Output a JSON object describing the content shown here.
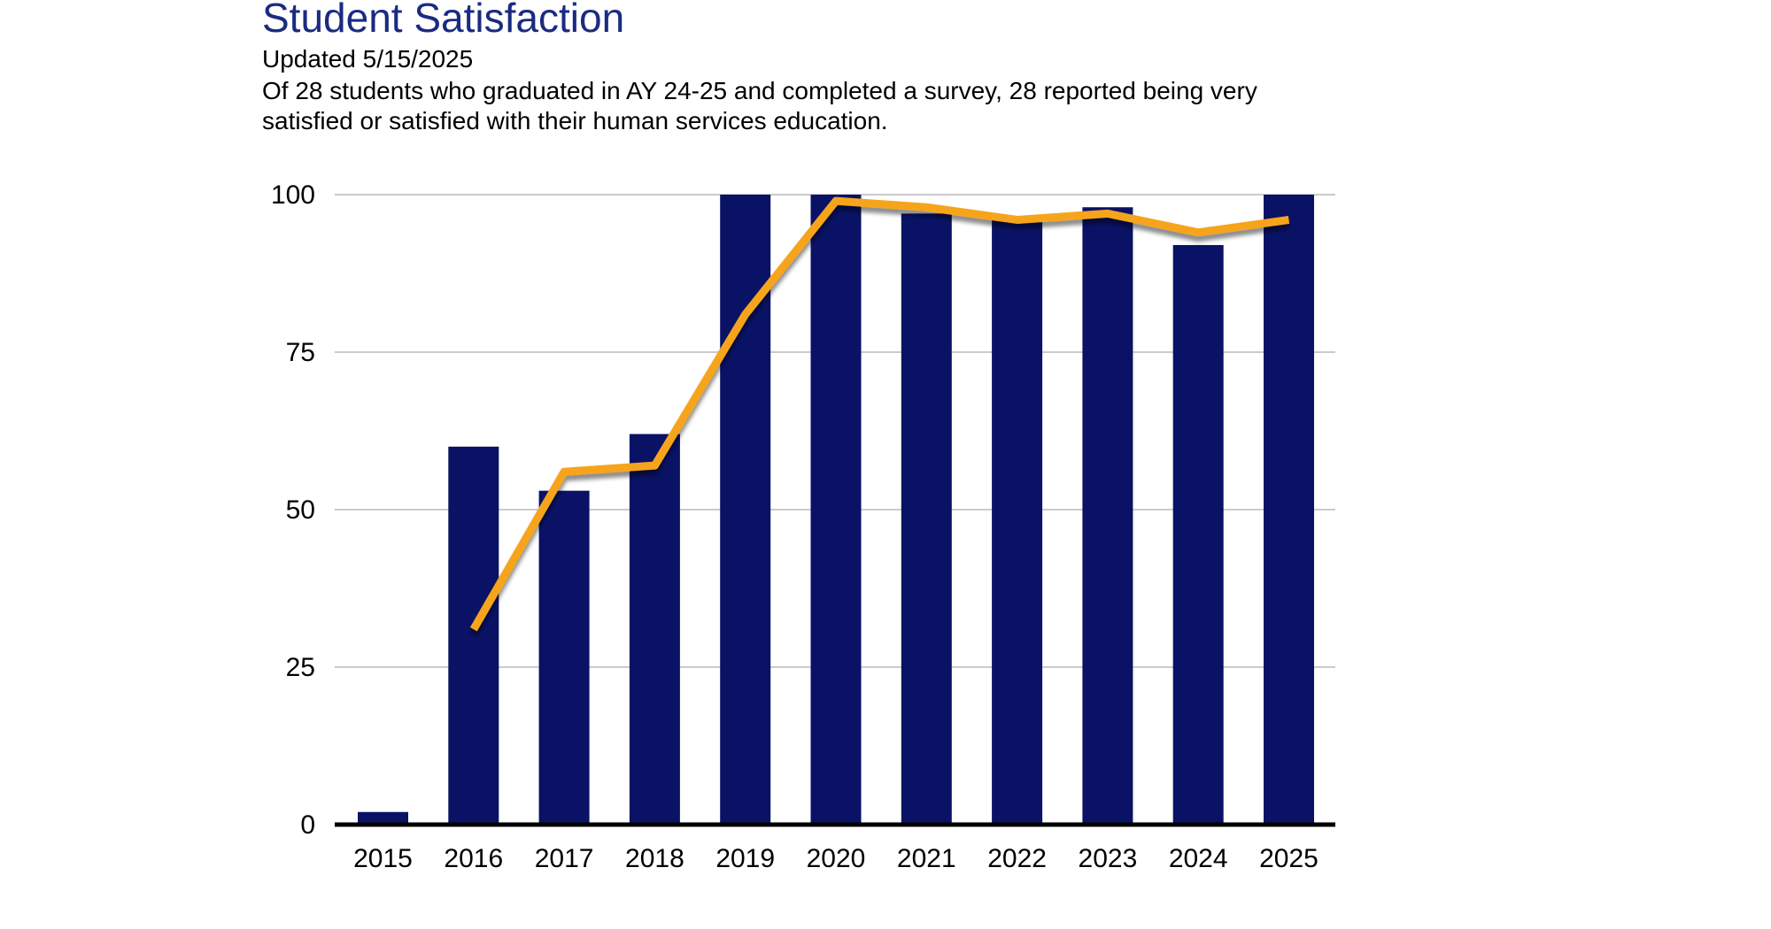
{
  "page": {
    "background": "#ffffff"
  },
  "header": {
    "title": "Student Satisfaction",
    "updated": "Updated 5/15/2025",
    "description_lines": [
      "Of 28 students who graduated in AY 24-25 and completed a survey, 28 reported being very",
      "satisfied or satisfied with their human services education."
    ]
  },
  "colors": {
    "title": "#1a2b80",
    "bar": "#0a1266",
    "line": "#f6a41d",
    "grid": "#cbcbcb",
    "axis": "#000000",
    "text": "#000000"
  },
  "chart_data": {
    "type": "bar",
    "title": "Student Satisfaction",
    "xlabel": "",
    "ylabel": "",
    "categories": [
      "2015",
      "2016",
      "2017",
      "2018",
      "2019",
      "2020",
      "2021",
      "2022",
      "2023",
      "2024",
      "2025"
    ],
    "series": [
      {
        "name": "bar-series",
        "type": "bar",
        "values": [
          2,
          60,
          53,
          62,
          100,
          100,
          97,
          96,
          98,
          92,
          100
        ]
      },
      {
        "name": "line-series",
        "type": "line",
        "values": [
          null,
          31,
          56,
          57,
          81,
          99,
          98,
          96,
          97,
          94,
          96
        ]
      }
    ],
    "yticks": [
      0,
      25,
      50,
      75,
      100
    ],
    "ylim": [
      0,
      100
    ],
    "grid": true,
    "legend": "none"
  }
}
